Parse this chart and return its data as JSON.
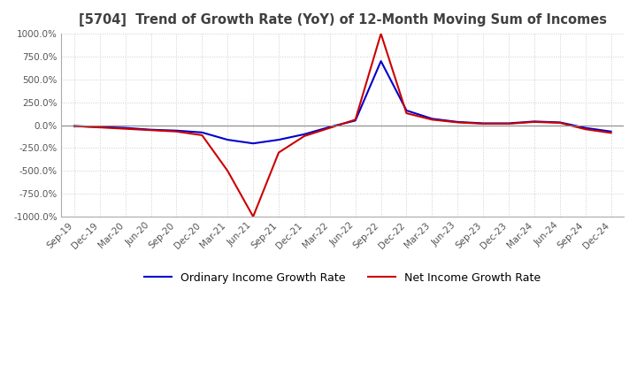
{
  "title": "[5704]  Trend of Growth Rate (YoY) of 12-Month Moving Sum of Incomes",
  "ylim": [
    -1000,
    1000
  ],
  "yticks": [
    -1000,
    -750,
    -500,
    -250,
    0,
    250,
    500,
    750,
    1000
  ],
  "background_color": "#ffffff",
  "plot_bg_color": "#ffffff",
  "grid_color": "#cccccc",
  "title_color": "#404040",
  "legend_labels": [
    "Ordinary Income Growth Rate",
    "Net Income Growth Rate"
  ],
  "line_colors": [
    "#0000cc",
    "#cc0000"
  ],
  "x_labels": [
    "Sep-19",
    "Dec-19",
    "Mar-20",
    "Jun-20",
    "Sep-20",
    "Dec-20",
    "Mar-21",
    "Jun-21",
    "Sep-21",
    "Dec-21",
    "Mar-22",
    "Jun-22",
    "Sep-22",
    "Dec-22",
    "Mar-23",
    "Jun-23",
    "Sep-23",
    "Dec-23",
    "Mar-24",
    "Jun-24",
    "Sep-24",
    "Dec-24"
  ],
  "ordinary_income": [
    -10,
    -20,
    -30,
    -50,
    -60,
    -80,
    -160,
    -200,
    -160,
    -100,
    -20,
    50,
    700,
    160,
    70,
    35,
    20,
    20,
    40,
    30,
    -30,
    -70
  ],
  "net_income": [
    -10,
    -25,
    -40,
    -55,
    -70,
    -110,
    -500,
    -1000,
    -300,
    -120,
    -30,
    60,
    1000,
    130,
    60,
    30,
    15,
    15,
    35,
    25,
    -45,
    -85
  ]
}
